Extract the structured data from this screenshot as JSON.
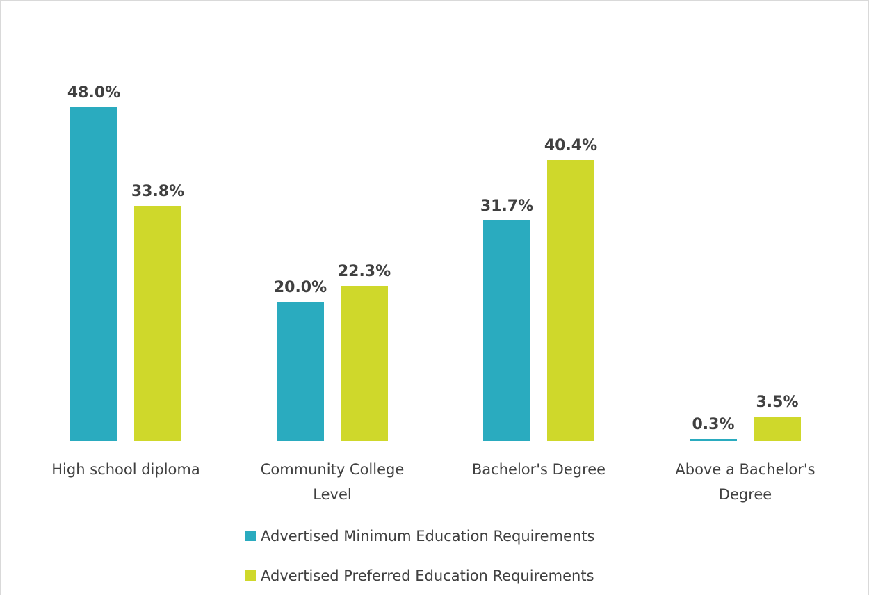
{
  "chart_data": {
    "type": "bar",
    "categories": [
      [
        "High school diploma"
      ],
      [
        "Community College",
        "Level"
      ],
      [
        "Bachelor's Degree"
      ],
      [
        "Above a Bachelor's",
        "Degree"
      ]
    ],
    "series": [
      {
        "name": "Advertised Minimum Education Requirements",
        "color": "#2aabbf",
        "values": [
          48.0,
          20.0,
          31.7,
          0.3
        ],
        "labels": [
          "48.0%",
          "20.0%",
          "31.7%",
          "0.3%"
        ]
      },
      {
        "name": "Advertised Preferred Education Requirements",
        "color": "#cfd82b",
        "values": [
          33.8,
          22.3,
          40.4,
          3.5
        ],
        "labels": [
          "33.8%",
          "22.3%",
          "40.4%",
          "3.5%"
        ]
      }
    ],
    "unit": "%",
    "ylim": [
      0,
      48.0
    ],
    "grid": false,
    "legend_position": "bottom"
  }
}
